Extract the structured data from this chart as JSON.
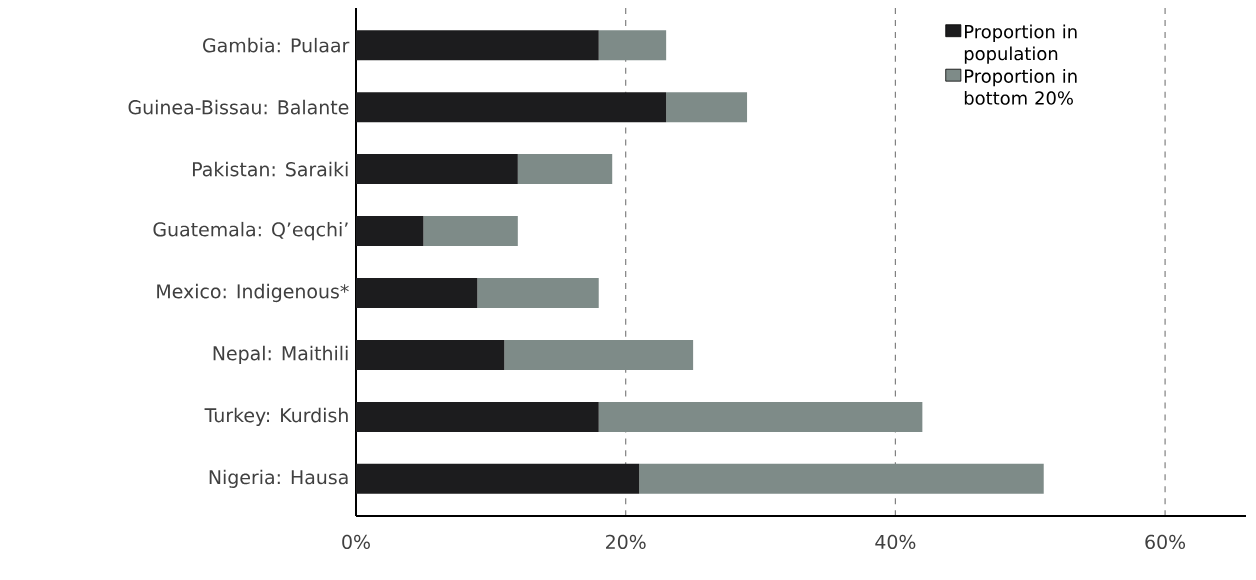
{
  "chart_data": {
    "type": "bar",
    "orientation": "horizontal",
    "stacked": true,
    "categories": [
      "Gambia: Pulaar",
      "Guinea-Bissau: Balante",
      "Pakistan: Saraiki",
      "Guatemala: Q’eqchi’",
      "Mexico: Indigenous*",
      "Nepal: Maithili",
      "Turkey: Kurdish",
      "Nigeria: Hausa"
    ],
    "series": [
      {
        "name": "Proportion in population",
        "color": "#1c1c1e",
        "values": [
          18,
          23,
          12,
          5,
          9,
          11,
          18,
          21
        ]
      },
      {
        "name": "Proportion in bottom 20%",
        "color": "#7e8b88",
        "values": [
          5,
          6,
          7,
          7,
          9,
          14,
          24,
          30
        ]
      }
    ],
    "xlim": [
      0,
      66
    ],
    "xticks": [
      {
        "value": 0,
        "label": "0%"
      },
      {
        "value": 20,
        "label": "20%"
      },
      {
        "value": 40,
        "label": "40%"
      },
      {
        "value": 60,
        "label": "60%"
      }
    ],
    "grid": "x",
    "legend": "top right"
  }
}
